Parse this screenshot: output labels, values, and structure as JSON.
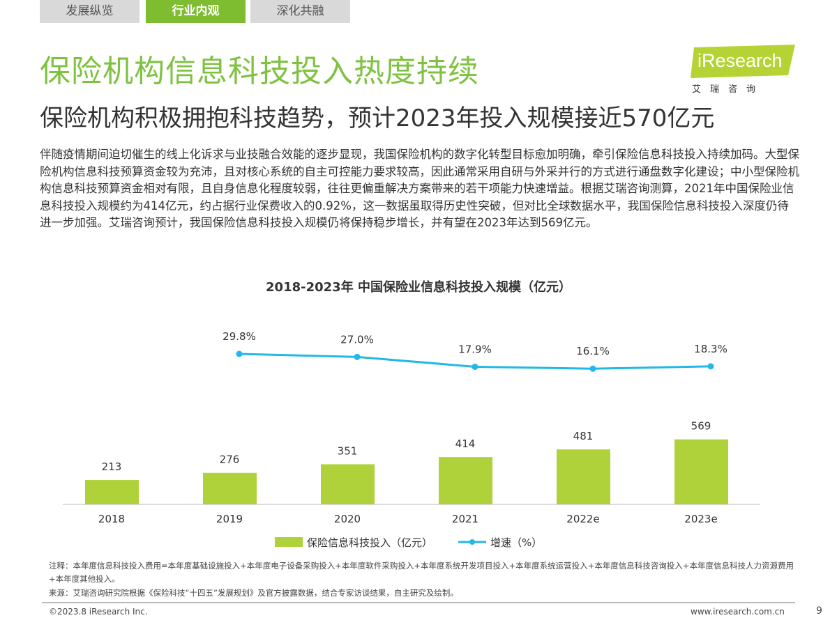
{
  "tabs": [
    {
      "label": "发展纵览",
      "active": false
    },
    {
      "label": "行业内观",
      "active": true
    },
    {
      "label": "深化共融",
      "active": false
    }
  ],
  "title": "保险机构信息科技投入热度持续",
  "subtitle": "保险机构积极拥抱科技趋势，预计2023年投入规模接近570亿元",
  "logo": {
    "text": "iResearch",
    "cn": "艾瑞咨询",
    "color": "#b5d334"
  },
  "body": "伴随疫情期间迫切催生的线上化诉求与业技融合效能的逐步显现，我国保险机构的数字化转型目标愈加明确，牵引保险信息科技投入持续加码。大型保险机构信息科技预算资金较为充沛，且对核心系统的自主可控能力要求较高，因此通常采用自研与外采并行的方式进行通盘数字化建设；中小型保险机构信息科技预算资金相对有限，且自身信息化程度较弱，往往更偏重解决方案带来的若干项能力快速增益。根据艾瑞咨询测算，2021年中国保险业信息科技投入规模约为414亿元，约占据行业保费收入的0.92%，这一数据虽取得历史性突破，但对比全球数据水平，我国保险信息科技投入深度仍待进一步加强。艾瑞咨询预计，我国保险信息科技投入规模仍将保持稳步增长，并有望在2023年达到569亿元。",
  "chart_data": {
    "type": "bar+line",
    "title": "2018-2023年 中国保险业信息科技投入规模（亿元）",
    "categories": [
      "2018",
      "2019",
      "2020",
      "2021",
      "2022e",
      "2023e"
    ],
    "series": [
      {
        "name": "保险信息科技投入（亿元）",
        "type": "bar",
        "color": "#afd13a",
        "values": [
          213,
          276,
          351,
          414,
          481,
          569
        ],
        "labels": [
          "213",
          "276",
          "351",
          "414",
          "481",
          "569"
        ]
      },
      {
        "name": "增速（%）",
        "type": "line",
        "color": "#22b8e8",
        "values": [
          null,
          29.8,
          27.0,
          17.9,
          16.1,
          18.3
        ],
        "labels": [
          "",
          "29.8%",
          "27.0%",
          "17.9%",
          "16.1%",
          "18.3%"
        ]
      }
    ],
    "legend": "bottom"
  },
  "notes": {
    "note": "注释：本年度信息科技投入费用=本年度基础设施投入+本年度电子设备采购投入+本年度软件采购投入+本年度系统开发项目投入+本年度系统运营投入+本年度信息科技咨询投入+本年度信息科技人力资源费用+本年度其他投入。",
    "source": "来源：艾瑞咨询研究院根据《保险科技“十四五”发展规划》及官方披露数据，结合专家访谈结果，自主研究及绘制。"
  },
  "footer": {
    "copyright": "©2023.8 iResearch Inc.",
    "url": "www.iresearch.com.cn",
    "page": "9"
  }
}
